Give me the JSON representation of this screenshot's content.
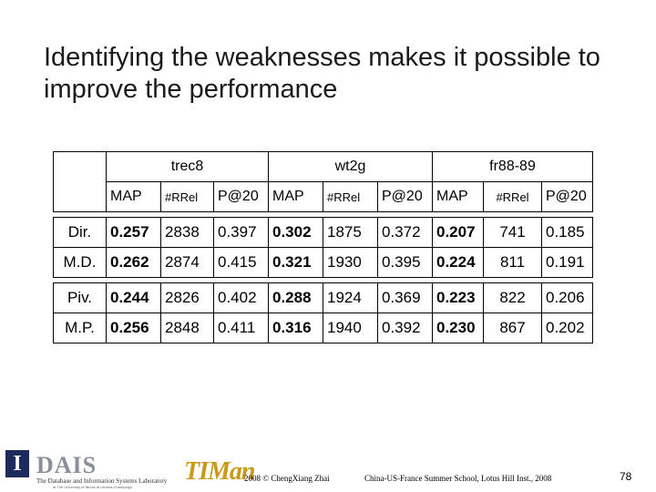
{
  "slide": {
    "title": "Identifying the weaknesses makes it possible to improve the performance",
    "number": "78"
  },
  "table": {
    "groups": [
      "trec8",
      "wt2g",
      "fr88-89"
    ],
    "metrics": [
      "MAP",
      "#RRel",
      "P@20"
    ],
    "rows": [
      {
        "label": "Dir.",
        "values": [
          "0.257",
          "2838",
          "0.397",
          "0.302",
          "1875",
          "0.372",
          "0.207",
          "741",
          "0.185"
        ]
      },
      {
        "label": "M.D.",
        "values": [
          "0.262",
          "2874",
          "0.415",
          "0.321",
          "1930",
          "0.395",
          "0.224",
          "811",
          "0.191"
        ]
      },
      {
        "label": "Piv.",
        "values": [
          "0.244",
          "2826",
          "0.402",
          "0.288",
          "1924",
          "0.369",
          "0.223",
          "822",
          "0.206"
        ]
      },
      {
        "label": "M.P.",
        "values": [
          "0.256",
          "2848",
          "0.411",
          "0.316",
          "1940",
          "0.392",
          "0.230",
          "867",
          "0.202"
        ]
      }
    ]
  },
  "footer": {
    "logo_dais": "DAIS",
    "logo_dais_initial": "I",
    "logo_dais_subtitle": "The Database and Information Systems Laboratory",
    "logo_dais_small": "at The University of Illinois at Urbana-Champaign",
    "logo_timan": "TIMan",
    "copyright": "2008 © ChengXiang Zhai",
    "event": "China-US-France Summer School, Lotus Hill Inst., 2008"
  },
  "colors": {
    "title": "#1a1a1a",
    "dais_blue": "#1d2a5c",
    "timan_gold": "#c89a18"
  }
}
